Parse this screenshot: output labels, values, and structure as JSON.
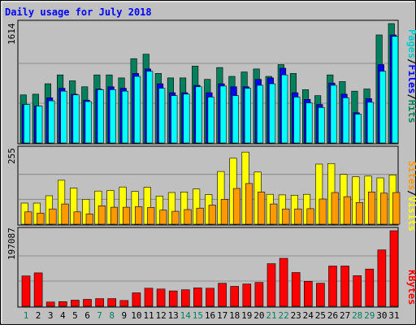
{
  "chart_data": [
    {
      "type": "bar",
      "title": "Daily usage for July 2018",
      "categories": [
        "1",
        "2",
        "3",
        "4",
        "5",
        "6",
        "7",
        "8",
        "9",
        "10",
        "11",
        "12",
        "13",
        "14",
        "15",
        "16",
        "17",
        "18",
        "19",
        "20",
        "21",
        "22",
        "23",
        "24",
        "25",
        "26",
        "27",
        "28",
        "29",
        "30",
        "31"
      ],
      "weekend_days": [
        "1",
        "7",
        "8",
        "14",
        "15",
        "21",
        "22",
        "28",
        "29"
      ],
      "ylim": [
        0,
        1614
      ],
      "ymax_label": "1614",
      "legend": [
        "Pages",
        "/",
        "Files",
        "/",
        "Hits"
      ],
      "series": [
        {
          "name": "Hits",
          "color": "#00805c",
          "values": [
            650,
            660,
            800,
            920,
            840,
            760,
            920,
            920,
            880,
            1140,
            1200,
            940,
            880,
            880,
            1040,
            860,
            1020,
            900,
            960,
            1000,
            900,
            1060,
            940,
            720,
            640,
            920,
            830,
            700,
            730,
            1460,
            1614
          ]
        },
        {
          "name": "Files",
          "color": "#0000ff",
          "values": [
            520,
            500,
            610,
            740,
            660,
            580,
            730,
            760,
            740,
            940,
            1000,
            800,
            680,
            680,
            780,
            680,
            800,
            760,
            760,
            860,
            880,
            1010,
            680,
            590,
            520,
            810,
            660,
            410,
            600,
            1060,
            1460
          ]
        },
        {
          "name": "Pages",
          "color": "#00ffff",
          "values": [
            520,
            500,
            570,
            700,
            650,
            560,
            720,
            720,
            700,
            900,
            970,
            740,
            640,
            660,
            760,
            620,
            770,
            640,
            740,
            780,
            800,
            920,
            620,
            540,
            480,
            780,
            610,
            390,
            550,
            970,
            1440
          ]
        }
      ]
    },
    {
      "type": "bar",
      "categories": [
        "1",
        "2",
        "3",
        "4",
        "5",
        "6",
        "7",
        "8",
        "9",
        "10",
        "11",
        "12",
        "13",
        "14",
        "15",
        "16",
        "17",
        "18",
        "19",
        "20",
        "21",
        "22",
        "23",
        "24",
        "25",
        "26",
        "27",
        "28",
        "29",
        "30",
        "31"
      ],
      "ylim": [
        0,
        255
      ],
      "ymax_label": "255",
      "legend": [
        "Sites",
        "/",
        "Visits"
      ],
      "series": [
        {
          "name": "Visits",
          "color": "#ffff00",
          "values": [
            72,
            72,
            97,
            150,
            123,
            85,
            113,
            115,
            127,
            112,
            126,
            96,
            108,
            110,
            120,
            101,
            180,
            225,
            246,
            178,
            102,
            100,
            99,
            102,
            205,
            207,
            170,
            162,
            164,
            158,
            168
          ]
        },
        {
          "name": "Sites",
          "color": "#ff9900",
          "values": [
            42,
            38,
            52,
            69,
            42,
            35,
            63,
            58,
            58,
            60,
            57,
            48,
            44,
            50,
            55,
            65,
            85,
            122,
            139,
            110,
            69,
            52,
            52,
            53,
            86,
            108,
            94,
            74,
            110,
            106,
            108
          ]
        }
      ]
    },
    {
      "type": "bar",
      "categories": [
        "1",
        "2",
        "3",
        "4",
        "5",
        "6",
        "7",
        "8",
        "9",
        "10",
        "11",
        "12",
        "13",
        "14",
        "15",
        "16",
        "17",
        "18",
        "19",
        "20",
        "21",
        "22",
        "23",
        "24",
        "25",
        "26",
        "27",
        "28",
        "29",
        "30",
        "31"
      ],
      "ylim": [
        0,
        197087
      ],
      "ymax_label": "197087",
      "legend": [
        "KBytes"
      ],
      "series": [
        {
          "name": "KBytes",
          "color": "#ff0000",
          "values": [
            79000,
            87000,
            11000,
            12000,
            16000,
            18000,
            20000,
            20000,
            15000,
            35000,
            47000,
            45000,
            40000,
            43000,
            48000,
            47000,
            60000,
            52000,
            58000,
            62000,
            111000,
            125000,
            88000,
            65000,
            60000,
            105000,
            105000,
            80000,
            97000,
            147000,
            197087
          ]
        }
      ]
    }
  ]
}
